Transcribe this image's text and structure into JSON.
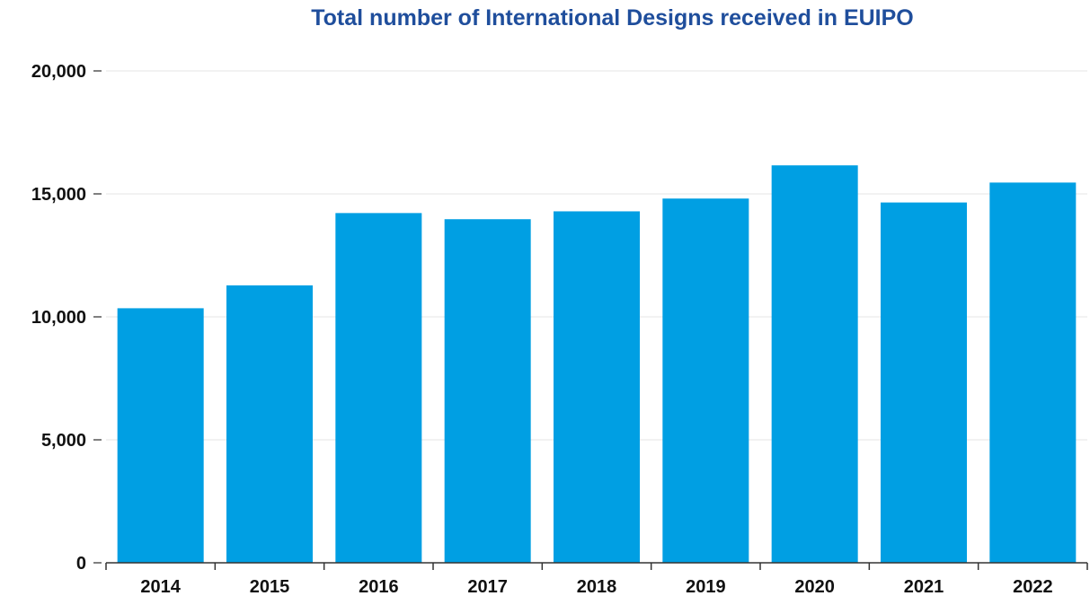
{
  "chart_data": {
    "type": "bar",
    "title": "Total number of International Designs received in EUIPO",
    "xlabel": "",
    "ylabel": "",
    "categories": [
      "2014",
      "2015",
      "2016",
      "2017",
      "2018",
      "2019",
      "2020",
      "2021",
      "2022"
    ],
    "values": [
      10350,
      11280,
      14220,
      13970,
      14290,
      14810,
      16160,
      14650,
      15460
    ],
    "ylim": [
      0,
      20000
    ],
    "yticks": [
      0,
      5000,
      10000,
      15000,
      20000
    ],
    "ytick_labels": [
      "0",
      "5,000",
      "10,000",
      "15,000",
      "20,000"
    ],
    "grid": true,
    "legend": "none",
    "bar_color": "#009fe3",
    "grid_color": "#e4e4e4",
    "title_color": "#1f4e9c"
  }
}
